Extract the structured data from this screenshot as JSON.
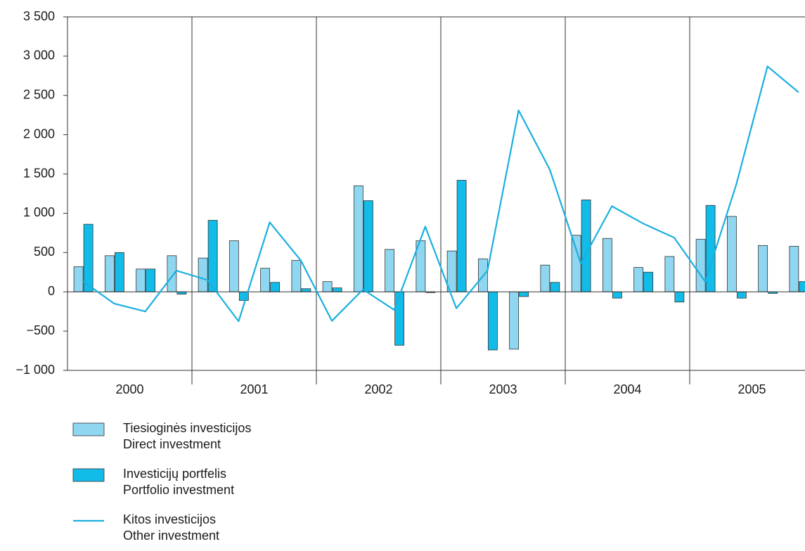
{
  "chart_data": {
    "type": "bar_line",
    "groups": [
      "2000",
      "2001",
      "2002",
      "2003",
      "2004",
      "2005"
    ],
    "periods_per_group": 4,
    "ylim": [
      -1000,
      3500
    ],
    "yticks": [
      {
        "value": -1000,
        "label": "−1 000"
      },
      {
        "value": -500,
        "label": "−500"
      },
      0,
      500,
      {
        "value": 1000,
        "label": "1 000"
      },
      {
        "value": 1500,
        "label": "1 500"
      },
      {
        "value": 2000,
        "label": "2 000"
      },
      {
        "value": 2500,
        "label": "2 500"
      },
      {
        "value": 3000,
        "label": "3 000"
      },
      {
        "value": 3500,
        "label": "3 500"
      }
    ],
    "series": [
      {
        "name": "Tiesioginės investicijos",
        "name_en": "Direct investment",
        "kind": "bar",
        "color": "#8fd6f0",
        "values": [
          320,
          460,
          290,
          460,
          430,
          650,
          300,
          400,
          130,
          1350,
          540,
          650,
          520,
          420,
          -730,
          340,
          720,
          680,
          310,
          450,
          670,
          960,
          590,
          580
        ]
      },
      {
        "name": "Investicijų portfelis",
        "name_en": "Portfolio investment",
        "kind": "bar",
        "color": "#12bce8",
        "values": [
          860,
          500,
          290,
          -30,
          910,
          -110,
          120,
          40,
          50,
          1160,
          -680,
          -10,
          1420,
          -740,
          -60,
          120,
          1170,
          -80,
          250,
          -130,
          1100,
          -80,
          -20,
          130
        ]
      },
      {
        "name": "Kitos investicijos",
        "name_en": "Other investment",
        "kind": "line",
        "color": "#1aafe0",
        "values": [
          134,
          -150,
          -250,
          270,
          150,
          -375,
          885,
          400,
          -370,
          30,
          -230,
          830,
          -210,
          270,
          2310,
          1560,
          360,
          1090,
          870,
          690,
          130,
          1370,
          2870,
          2540
        ]
      }
    ]
  }
}
